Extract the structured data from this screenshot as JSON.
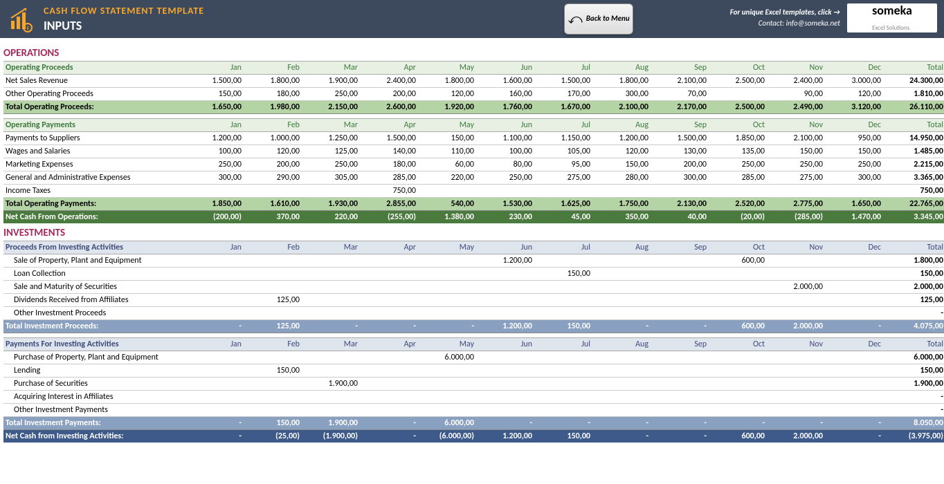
{
  "header": {
    "title": "CASH FLOW STATEMENT TEMPLATE",
    "subtitle": "INPUTS",
    "back_label": "Back to Menu",
    "info_line1": "For unique Excel templates, click →",
    "info_line2": "Contact: info@someka.net",
    "logo_text": "someka",
    "logo_sub": "Excel Solutions"
  },
  "months": [
    "Jan",
    "Feb",
    "Mar",
    "Apr",
    "May",
    "Jun",
    "Jul",
    "Aug",
    "Sep",
    "Oct",
    "Nov",
    "Dec",
    "Total"
  ],
  "colors": {
    "header_bg": "#3d4a5e",
    "title_accent": "#f7a62a",
    "section_title": "#a52a5e",
    "ops_hdr": "#e8f0e4",
    "ops_total": "#b5d4a5",
    "ops_net": "#4a7a3d",
    "inv_hdr": "#dfe5ed",
    "inv_total": "#8aa0c0",
    "inv_net": "#3d5a8a"
  },
  "sections": [
    {
      "title": "OPERATIONS",
      "titleClass": "section-title",
      "groups": [
        {
          "header": "Operating Proceeds",
          "hdrClass": "hdr-green",
          "rows": [
            {
              "label": "Net Sales Revenue",
              "vals": [
                "1.500,00",
                "1.800,00",
                "1.900,00",
                "2.400,00",
                "1.800,00",
                "1.600,00",
                "1.500,00",
                "1.800,00",
                "2.100,00",
                "2.500,00",
                "2.400,00",
                "3.000,00",
                "24.300,00"
              ]
            },
            {
              "label": "Other Operating Proceeds",
              "vals": [
                "150,00",
                "180,00",
                "250,00",
                "200,00",
                "120,00",
                "160,00",
                "170,00",
                "300,00",
                "70,00",
                "",
                "90,00",
                "120,00",
                "1.810,00"
              ]
            }
          ],
          "total": {
            "label": "Total Operating Proceeds:",
            "cls": "total-green",
            "vals": [
              "1.650,00",
              "1.980,00",
              "2.150,00",
              "2.600,00",
              "1.920,00",
              "1.760,00",
              "1.670,00",
              "2.100,00",
              "2.170,00",
              "2.500,00",
              "2.490,00",
              "3.120,00",
              "26.110,00"
            ]
          }
        },
        {
          "header": "Operating Payments",
          "hdrClass": "hdr-green",
          "rows": [
            {
              "label": "Payments to Suppliers",
              "vals": [
                "1.200,00",
                "1.000,00",
                "1.250,00",
                "1.500,00",
                "150,00",
                "1.100,00",
                "1.150,00",
                "1.200,00",
                "1.500,00",
                "1.850,00",
                "2.100,00",
                "950,00",
                "14.950,00"
              ]
            },
            {
              "label": "Wages and Salaries",
              "vals": [
                "100,00",
                "120,00",
                "125,00",
                "140,00",
                "110,00",
                "100,00",
                "105,00",
                "120,00",
                "130,00",
                "135,00",
                "150,00",
                "150,00",
                "1.485,00"
              ]
            },
            {
              "label": "Marketing Expenses",
              "vals": [
                "250,00",
                "200,00",
                "250,00",
                "180,00",
                "60,00",
                "80,00",
                "95,00",
                "150,00",
                "200,00",
                "250,00",
                "250,00",
                "250,00",
                "2.215,00"
              ]
            },
            {
              "label": "General and Administrative Expenses",
              "vals": [
                "300,00",
                "290,00",
                "305,00",
                "285,00",
                "220,00",
                "250,00",
                "275,00",
                "280,00",
                "300,00",
                "285,00",
                "275,00",
                "300,00",
                "3.365,00"
              ]
            },
            {
              "label": "Income Taxes",
              "vals": [
                "",
                "",
                "",
                "750,00",
                "",
                "",
                "",
                "",
                "",
                "",
                "",
                "",
                "750,00"
              ]
            }
          ],
          "total": {
            "label": "Total Operating Payments:",
            "cls": "total-green",
            "vals": [
              "1.850,00",
              "1.610,00",
              "1.930,00",
              "2.855,00",
              "540,00",
              "1.530,00",
              "1.625,00",
              "1.750,00",
              "2.130,00",
              "2.520,00",
              "2.775,00",
              "1.650,00",
              "22.765,00"
            ]
          }
        }
      ],
      "net": {
        "label": "Net Cash From Operations:",
        "cls": "net-green",
        "vals": [
          "(200,00)",
          "370,00",
          "220,00",
          "(255,00)",
          "1.380,00",
          "230,00",
          "45,00",
          "350,00",
          "40,00",
          "(20,00)",
          "(285,00)",
          "1.470,00",
          "3.345,00"
        ]
      }
    },
    {
      "title": "INVESTMENTS",
      "titleClass": "section-title",
      "groups": [
        {
          "header": "Proceeds From Investing Activities",
          "hdrClass": "hdr-blue",
          "indent": true,
          "rows": [
            {
              "label": "Sale of Property, Plant and Equipment",
              "vals": [
                "",
                "",
                "",
                "",
                "",
                "1.200,00",
                "",
                "",
                "",
                "600,00",
                "",
                "",
                "1.800,00"
              ]
            },
            {
              "label": "Loan Collection",
              "vals": [
                "",
                "",
                "",
                "",
                "",
                "",
                "150,00",
                "",
                "",
                "",
                "",
                "",
                "150,00"
              ]
            },
            {
              "label": "Sale and Maturity of Securities",
              "vals": [
                "",
                "",
                "",
                "",
                "",
                "",
                "",
                "",
                "",
                "",
                "2.000,00",
                "",
                "2.000,00"
              ]
            },
            {
              "label": "Dividends Received from Affiliates",
              "vals": [
                "",
                "125,00",
                "",
                "",
                "",
                "",
                "",
                "",
                "",
                "",
                "",
                "",
                "125,00"
              ]
            },
            {
              "label": "Other Investment Proceeds",
              "vals": [
                "",
                "",
                "",
                "",
                "",
                "",
                "",
                "",
                "",
                "",
                "",
                "",
                "-"
              ]
            }
          ],
          "total": {
            "label": "Total Investment Proceeds:",
            "cls": "total-blue",
            "vals": [
              "-",
              "125,00",
              "-",
              "-",
              "-",
              "1.200,00",
              "150,00",
              "-",
              "-",
              "600,00",
              "2.000,00",
              "-",
              "4.075,00"
            ]
          }
        },
        {
          "header": "Payments For Investing Activities",
          "hdrClass": "hdr-blue",
          "indent": true,
          "rows": [
            {
              "label": "Purchase of Property, Plant and Equipment",
              "vals": [
                "",
                "",
                "",
                "",
                "6.000,00",
                "",
                "",
                "",
                "",
                "",
                "",
                "",
                "6.000,00"
              ]
            },
            {
              "label": "Lending",
              "vals": [
                "",
                "150,00",
                "",
                "",
                "",
                "",
                "",
                "",
                "",
                "",
                "",
                "",
                "150,00"
              ]
            },
            {
              "label": "Purchase of Securities",
              "vals": [
                "",
                "",
                "1.900,00",
                "",
                "",
                "",
                "",
                "",
                "",
                "",
                "",
                "",
                "1.900,00"
              ]
            },
            {
              "label": "Acquiring Interest in Affiliates",
              "vals": [
                "",
                "",
                "",
                "",
                "",
                "",
                "",
                "",
                "",
                "",
                "",
                "",
                "-"
              ]
            },
            {
              "label": "Other Investment Payments",
              "vals": [
                "",
                "",
                "",
                "",
                "",
                "",
                "",
                "",
                "",
                "",
                "",
                "",
                "-"
              ]
            }
          ],
          "total": {
            "label": "Total Investment Payments:",
            "cls": "total-blue",
            "vals": [
              "-",
              "150,00",
              "1.900,00",
              "-",
              "6.000,00",
              "-",
              "-",
              "-",
              "-",
              "-",
              "-",
              "-",
              "8.050,00"
            ]
          }
        }
      ],
      "net": {
        "label": "Net Cash from Investing Activities:",
        "cls": "net-blue",
        "vals": [
          "-",
          "(25,00)",
          "(1.900,00)",
          "-",
          "(6.000,00)",
          "1.200,00",
          "150,00",
          "-",
          "-",
          "600,00",
          "2.000,00",
          "-",
          "(3.975,00)"
        ]
      }
    }
  ]
}
